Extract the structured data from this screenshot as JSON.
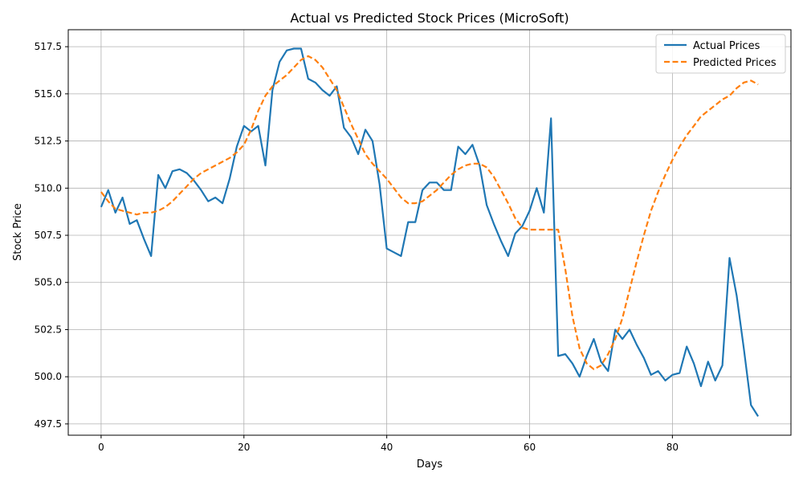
{
  "chart_data": {
    "type": "line",
    "title": "Actual vs Predicted Stock Prices (MicroSoft)",
    "xlabel": "Days",
    "ylabel": "Stock Price",
    "xlim": [
      -4.6,
      96.6
    ],
    "ylim": [
      496.9,
      518.4
    ],
    "xticks": [
      0,
      20,
      40,
      60,
      80
    ],
    "yticks": [
      497.5,
      500.0,
      502.5,
      505.0,
      507.5,
      510.0,
      512.5,
      515.0,
      517.5
    ],
    "ytick_labels": [
      "497.5",
      "500.0",
      "502.5",
      "505.0",
      "507.5",
      "510.0",
      "512.5",
      "515.0",
      "517.5"
    ],
    "xtick_labels": [
      "0",
      "20",
      "40",
      "60",
      "80"
    ],
    "grid": true,
    "legend_position": "top-right",
    "series": [
      {
        "name": "Actual Prices",
        "color": "#1f77b4",
        "style": "solid",
        "x": [
          0,
          1,
          2,
          3,
          4,
          5,
          6,
          7,
          8,
          9,
          10,
          11,
          12,
          13,
          14,
          15,
          16,
          17,
          18,
          19,
          20,
          21,
          22,
          23,
          24,
          25,
          26,
          27,
          28,
          29,
          30,
          31,
          32,
          33,
          34,
          35,
          36,
          37,
          38,
          39,
          40,
          41,
          42,
          43,
          44,
          45,
          46,
          47,
          48,
          49,
          50,
          51,
          52,
          53,
          54,
          55,
          56,
          57,
          58,
          59,
          60,
          61,
          62,
          63,
          64,
          65,
          66,
          67,
          68,
          69,
          70,
          71,
          72,
          73,
          74,
          75,
          76,
          77,
          78,
          79,
          80,
          81,
          82,
          83,
          84,
          85,
          86,
          87,
          88,
          89,
          90,
          91,
          92
        ],
        "values": [
          509.0,
          509.9,
          508.7,
          509.5,
          508.1,
          508.3,
          507.3,
          506.4,
          510.7,
          510.0,
          510.9,
          511.0,
          510.8,
          510.4,
          509.9,
          509.3,
          509.5,
          509.2,
          510.5,
          512.2,
          513.3,
          513.0,
          513.3,
          511.2,
          515.2,
          516.7,
          517.3,
          517.4,
          517.4,
          515.8,
          515.6,
          515.2,
          514.9,
          515.4,
          513.2,
          512.7,
          511.8,
          513.1,
          512.5,
          510.2,
          506.8,
          506.6,
          506.4,
          508.2,
          508.2,
          509.9,
          510.3,
          510.3,
          509.9,
          509.9,
          512.2,
          511.8,
          512.3,
          511.2,
          509.1,
          508.1,
          507.2,
          506.4,
          507.6,
          508.0,
          508.8,
          510.0,
          508.7,
          513.7,
          501.1,
          501.2,
          500.7,
          500.0,
          501.1,
          502.0,
          500.8,
          500.3,
          502.5,
          502.0,
          502.5,
          501.7,
          501.0,
          500.1,
          500.3,
          499.8,
          500.1,
          500.2,
          501.6,
          500.7,
          499.5,
          500.8,
          499.8,
          500.6,
          506.3,
          504.3,
          501.5,
          498.5,
          497.9
        ]
      },
      {
        "name": "Predicted Prices",
        "color": "#ff7f0e",
        "style": "dashed",
        "x": [
          0,
          1,
          2,
          3,
          4,
          5,
          6,
          7,
          8,
          9,
          10,
          11,
          12,
          13,
          14,
          15,
          16,
          17,
          18,
          19,
          20,
          21,
          22,
          23,
          24,
          25,
          26,
          27,
          28,
          29,
          30,
          31,
          32,
          33,
          34,
          35,
          36,
          37,
          38,
          39,
          40,
          41,
          42,
          43,
          44,
          45,
          46,
          47,
          48,
          49,
          50,
          51,
          52,
          53,
          54,
          55,
          56,
          57,
          58,
          59,
          60,
          61,
          62,
          63,
          64,
          65,
          66,
          67,
          68,
          69,
          70,
          71,
          72,
          73,
          74,
          75,
          76,
          77,
          78,
          79,
          80,
          81,
          82,
          83,
          84,
          85,
          86,
          87,
          88,
          89,
          90,
          91,
          92
        ],
        "values": [
          509.8,
          509.3,
          508.9,
          508.8,
          508.7,
          508.6,
          508.7,
          508.7,
          508.8,
          509.0,
          509.3,
          509.7,
          510.1,
          510.5,
          510.8,
          511.0,
          511.2,
          511.4,
          511.6,
          511.9,
          512.3,
          513.1,
          514.1,
          514.9,
          515.4,
          515.7,
          516.0,
          516.4,
          516.8,
          517.0,
          516.8,
          516.4,
          515.8,
          515.2,
          514.3,
          513.4,
          512.6,
          511.8,
          511.3,
          510.9,
          510.5,
          510.0,
          509.5,
          509.2,
          509.2,
          509.3,
          509.6,
          509.9,
          510.3,
          510.7,
          511.0,
          511.2,
          511.3,
          511.3,
          511.1,
          510.6,
          509.9,
          509.2,
          508.4,
          507.9,
          507.8,
          507.8,
          507.8,
          507.8,
          507.8,
          505.7,
          503.2,
          501.5,
          500.7,
          500.4,
          500.6,
          501.2,
          502.0,
          503.1,
          504.6,
          506.1,
          507.5,
          508.8,
          509.8,
          510.7,
          511.5,
          512.2,
          512.8,
          513.3,
          513.8,
          514.1,
          514.4,
          514.7,
          514.9,
          515.3,
          515.6,
          515.7,
          515.5
        ]
      }
    ]
  }
}
